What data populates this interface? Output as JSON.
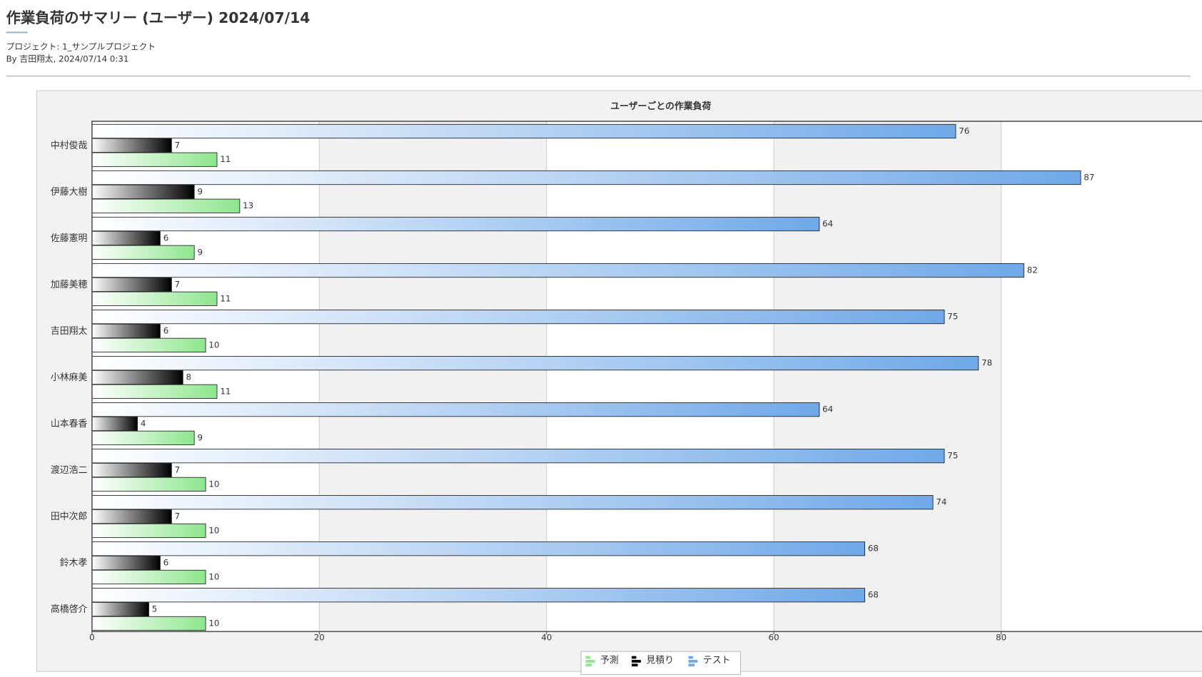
{
  "header": {
    "title": "作業負荷のサマリー (ユーザー) 2024/07/14",
    "project": "プロジェクト: 1_サンプルプロジェクト",
    "byline": "By 吉田翔太, 2024/07/14 0:31"
  },
  "chart_data": {
    "type": "hbar",
    "title": "ユーザーごとの作業負荷",
    "categories": [
      "中村俊哉",
      "伊藤大樹",
      "佐藤憲明",
      "加藤美穂",
      "吉田翔太",
      "小林麻美",
      "山本春香",
      "渡辺浩二",
      "田中次郎",
      "鈴木孝",
      "高橋啓介"
    ],
    "series": [
      {
        "name": "予測",
        "color": "#8ee68e",
        "values": [
          11,
          13,
          9,
          11,
          10,
          11,
          9,
          10,
          10,
          10,
          10
        ]
      },
      {
        "name": "見積り",
        "color": "#000000",
        "values": [
          7,
          9,
          6,
          7,
          6,
          8,
          4,
          7,
          7,
          6,
          5
        ]
      },
      {
        "name": "テスト",
        "color": "#6fa8e8",
        "values": [
          76,
          87,
          64,
          82,
          75,
          78,
          64,
          75,
          74,
          68,
          68
        ]
      }
    ],
    "xlim": [
      0,
      100
    ],
    "xticks": [
      0,
      20,
      40,
      60,
      80
    ],
    "grid": true,
    "legend": "bottom"
  }
}
